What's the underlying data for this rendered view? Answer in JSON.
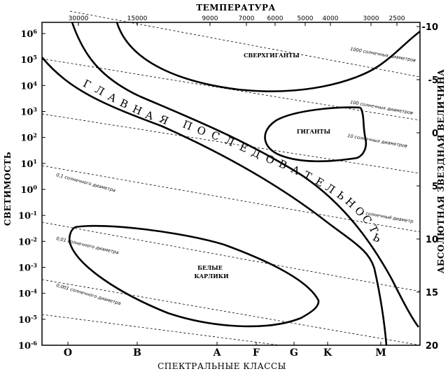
{
  "diagram": {
    "title_top": "ТЕМПЕРАТУРА",
    "left_axis_label": "СВЕТИМОСТЬ",
    "right_axis_label": "АБСОЛЮТНАЯ ЗВЕЗДНАЯ ВЕЛИЧИНА",
    "bottom_axis_label": "СПЕКТРАЛЬНЫЕ КЛАССЫ",
    "temperature_ticks": [
      "30000",
      "15000",
      "9000",
      "7000",
      "6000",
      "5000",
      "4000",
      "3000",
      "2500"
    ],
    "luminosity_ticks": [
      {
        "base": "10",
        "exp": "6"
      },
      {
        "base": "10",
        "exp": "5"
      },
      {
        "base": "10",
        "exp": "4"
      },
      {
        "base": "10",
        "exp": "3"
      },
      {
        "base": "10",
        "exp": "2"
      },
      {
        "base": "10",
        "exp": "1"
      },
      {
        "base": "10",
        "exp": "0"
      },
      {
        "base": "10",
        "exp": "-1"
      },
      {
        "base": "10",
        "exp": "-2"
      },
      {
        "base": "10",
        "exp": "-3"
      },
      {
        "base": "10",
        "exp": "-4"
      },
      {
        "base": "10",
        "exp": "-5"
      },
      {
        "base": "10",
        "exp": "-6"
      }
    ],
    "magnitude_ticks": [
      "-10",
      "-5",
      "0",
      "5",
      "10",
      "15",
      "20"
    ],
    "spectral_classes": [
      "O",
      "B",
      "A",
      "F",
      "G",
      "K",
      "M"
    ],
    "regions": {
      "supergiants": "СВЕРХГИГАНТЫ",
      "giants": "ГИГАНТЫ",
      "white_dwarfs_line1": "БЕЛЫЕ",
      "white_dwarfs_line2": "КАРЛИКИ",
      "main_sequence": "ГЛАВНАЯ ПОСЛЕДОВАТЕЛЬНОСТЬ"
    },
    "diameter_lines": [
      "1000 солнечных диаметров",
      "100 солнечных диаметров",
      "10 солнечных диаметров",
      "1 солнечный диаметр",
      "0,1 солнечного диаметра",
      "0,01 солнечного диаметра",
      "0,001 солнечного диаметра"
    ]
  }
}
